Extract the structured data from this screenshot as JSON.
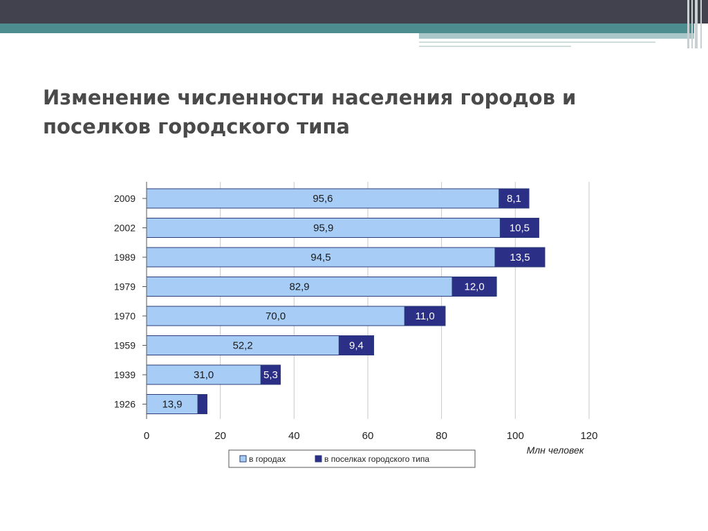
{
  "slide": {
    "title": "Изменение численности населения городов и поселков городского типа"
  },
  "colors": {
    "city": "#a7cdf6",
    "town": "#2b2f86",
    "bar_border": "#2a3a7a",
    "grid": "#c8c8c8"
  },
  "chart_data": {
    "type": "bar",
    "orientation": "horizontal",
    "stacked": true,
    "categories": [
      "2009",
      "2002",
      "1989",
      "1979",
      "1970",
      "1959",
      "1939",
      "1926"
    ],
    "series": [
      {
        "name": "в городах",
        "values": [
          95.6,
          95.9,
          94.5,
          82.9,
          70.0,
          52.2,
          31.0,
          13.9
        ],
        "labels": [
          "95,6",
          "95,9",
          "94,5",
          "82,9",
          "70,0",
          "52,2",
          "31,0",
          "13,9"
        ]
      },
      {
        "name": "в поселках городского типа",
        "values": [
          8.1,
          10.5,
          13.5,
          12.0,
          11.0,
          9.4,
          5.3,
          2.5
        ],
        "labels": [
          "8,1",
          "10,5",
          "13,5",
          "12,0",
          "11,0",
          "9,4",
          "5,3",
          ""
        ]
      }
    ],
    "xlim": [
      0,
      120
    ],
    "xticks": [
      "0",
      "20",
      "40",
      "60",
      "80",
      "100",
      "120"
    ],
    "xlabel": "Млн человек",
    "grid": true,
    "legend_position": "bottom"
  }
}
